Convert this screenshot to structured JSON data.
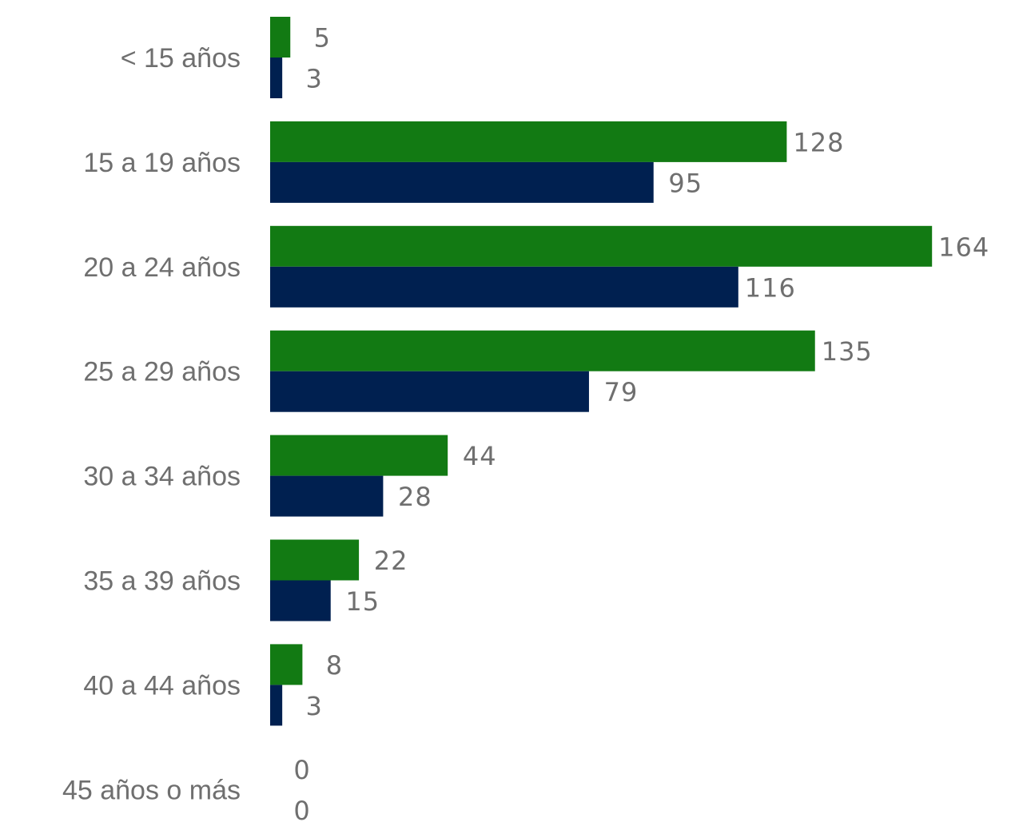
{
  "chart_data": {
    "type": "bar",
    "orientation": "horizontal",
    "categories": [
      "< 15 años",
      "15 a 19 años",
      "20 a 24 años",
      "25 a 29 años",
      "30 a 34 años",
      "35 a 39 años",
      "40 a 44 años",
      "45 años o más"
    ],
    "series": [
      {
        "values": [
          5,
          128,
          164,
          135,
          44,
          22,
          8,
          0
        ],
        "color": "#127a13"
      },
      {
        "values": [
          3,
          95,
          116,
          79,
          28,
          15,
          3,
          0
        ],
        "color": "#002050"
      }
    ],
    "xlim": [
      0,
      164
    ],
    "grid": false,
    "legend": "none",
    "data_labels": true
  }
}
